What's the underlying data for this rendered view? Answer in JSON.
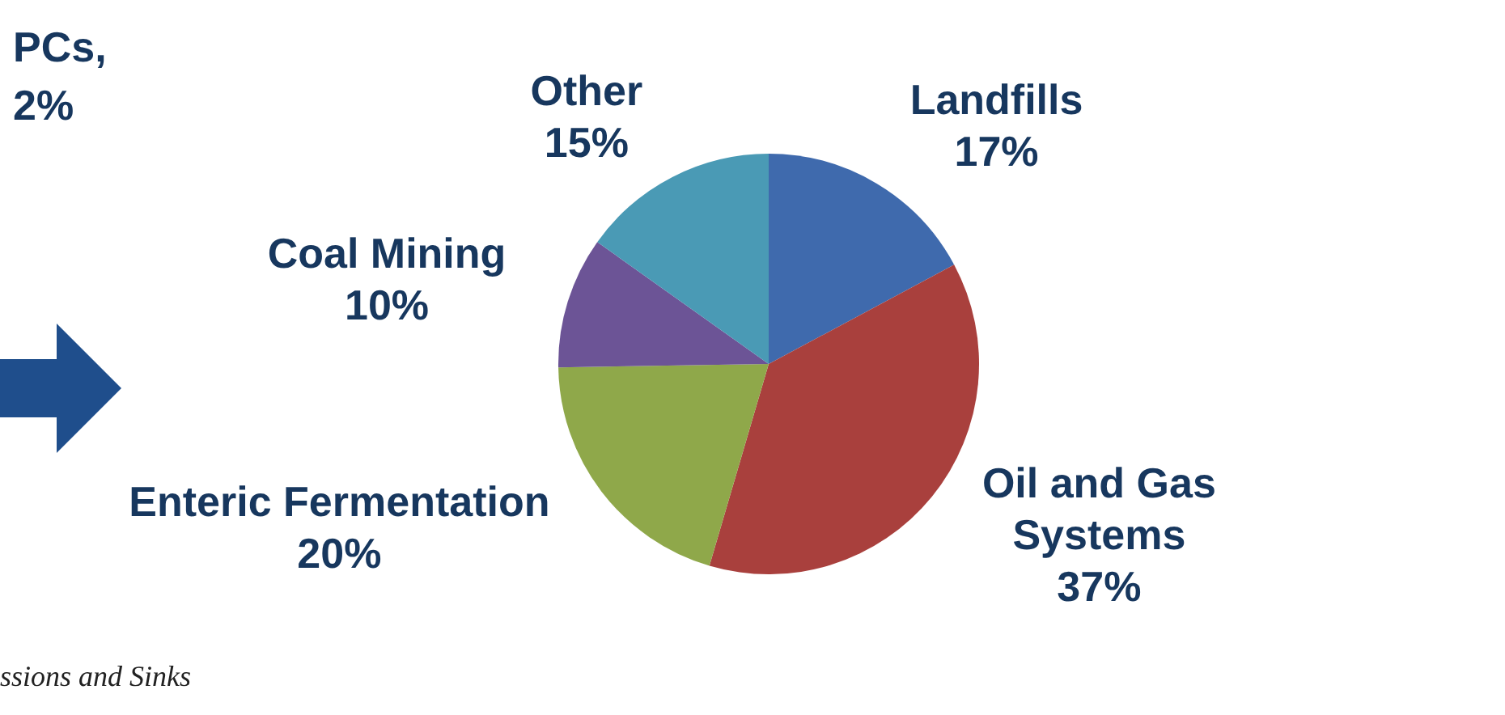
{
  "chart_data": {
    "type": "pie",
    "categories": [
      "Landfills",
      "Oil and Gas Systems",
      "Enteric Fermentation",
      "Coal Mining",
      "Other"
    ],
    "values": [
      17,
      37,
      20,
      10,
      15
    ],
    "value_labels": [
      "17%",
      "37%",
      "20%",
      "10%",
      "15%"
    ],
    "colors": [
      "#3f6aad",
      "#a9403d",
      "#8fa84a",
      "#6c5496",
      "#4a9ab5"
    ],
    "annotations": [
      "PCs,",
      "2%",
      "ssions and Sinks"
    ],
    "legend": false
  }
}
